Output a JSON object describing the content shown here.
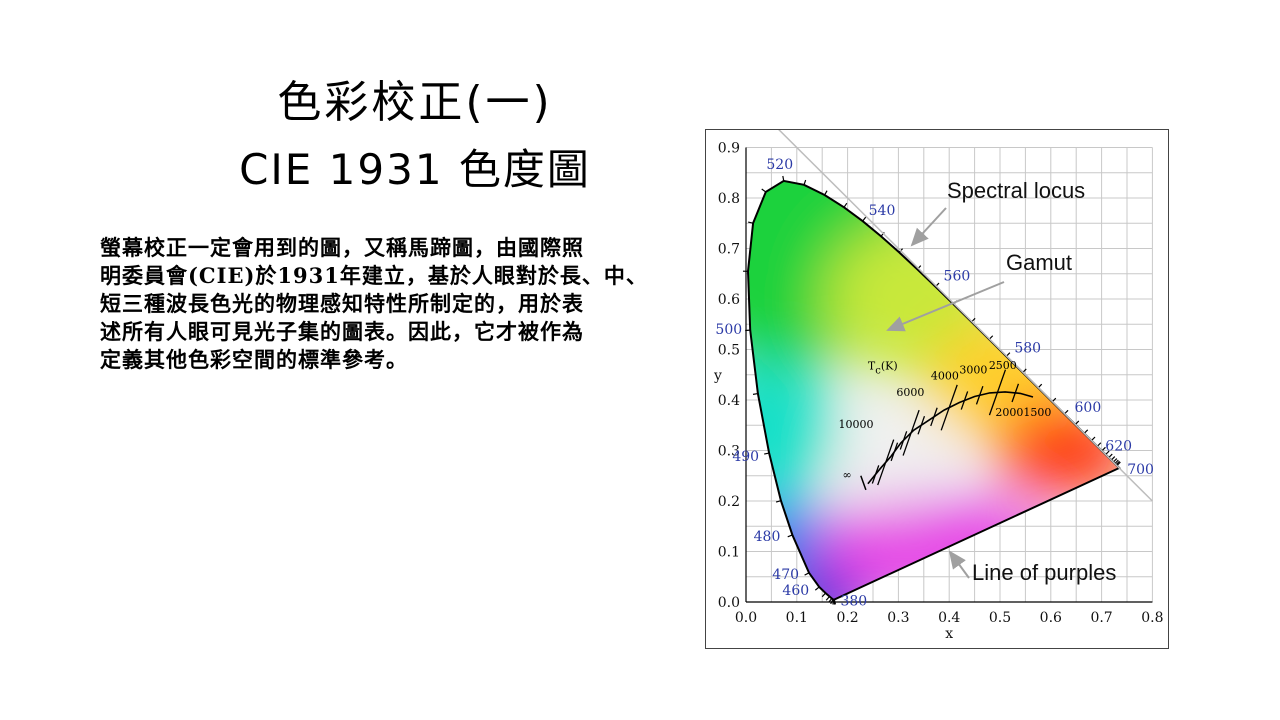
{
  "slide": {
    "title_line1": "色彩校正(一)",
    "title_line2": "CIE 1931 色度圖",
    "body_lines": [
      "螢幕校正一定會用到的圖，又稱馬蹄圖，由國際照",
      "明委員會(CIE)於1931年建立，基於人眼對於長、中、",
      "短三種波長色光的物理感知特性所制定的，用於表",
      "述所有人眼可見光子集的圖表。因此，它才被作為",
      "定義其他色彩空間的標準參考。"
    ]
  },
  "diagram": {
    "x_axis_label": "x",
    "y_axis_label": "y",
    "x_ticks": [
      "0.0",
      "0.1",
      "0.2",
      "0.3",
      "0.4",
      "0.5",
      "0.6",
      "0.7",
      "0.8"
    ],
    "y_ticks": [
      "0.0",
      "0.1",
      "0.2",
      "0.3",
      "0.4",
      "0.5",
      "0.6",
      "0.7",
      "0.8",
      "0.9"
    ],
    "wavelengths": [
      {
        "label": "380",
        "x": 0.1741,
        "y": 0.005
      },
      {
        "label": "460",
        "x": 0.144,
        "y": 0.0297
      },
      {
        "label": "470",
        "x": 0.1241,
        "y": 0.0578
      },
      {
        "label": "480",
        "x": 0.0913,
        "y": 0.1327
      },
      {
        "label": "490",
        "x": 0.0454,
        "y": 0.295
      },
      {
        "label": "500",
        "x": 0.0082,
        "y": 0.5384
      },
      {
        "label": "520",
        "x": 0.0743,
        "y": 0.8338
      },
      {
        "label": "540",
        "x": 0.2296,
        "y": 0.7543
      },
      {
        "label": "560",
        "x": 0.3731,
        "y": 0.6245
      },
      {
        "label": "580",
        "x": 0.5125,
        "y": 0.4866
      },
      {
        "label": "600",
        "x": 0.627,
        "y": 0.3725
      },
      {
        "label": "620",
        "x": 0.6915,
        "y": 0.3083
      },
      {
        "label": "700",
        "x": 0.7347,
        "y": 0.2653
      }
    ],
    "annotations": {
      "spectral_locus": "Spectral locus",
      "gamut": "Gamut",
      "line_of_purples": "Line of purples"
    },
    "planckian_title": "T",
    "planckian_title_sub": "c",
    "planckian_title_unit": "(K)",
    "planckian_labels": [
      "10000",
      "6000",
      "4000",
      "3000",
      "2500",
      "2000",
      "1500",
      "∞"
    ],
    "colors": {
      "wavelength_label": "#2b3aa6",
      "grid": "#c8c8c8",
      "arrow": "#a0a0a0"
    }
  }
}
